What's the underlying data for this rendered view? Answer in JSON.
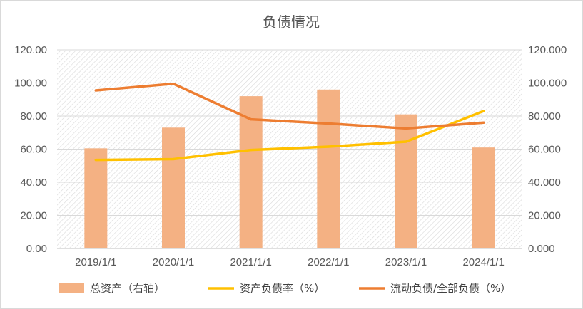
{
  "chart_data": {
    "type": "bar+line",
    "title": "负债情况",
    "categories": [
      "2019/1/1",
      "2020/1/1",
      "2021/1/1",
      "2022/1/1",
      "2023/1/1",
      "2024/1/1"
    ],
    "left_axis": {
      "min": 0,
      "max": 120,
      "step": 20,
      "decimals": 2
    },
    "right_axis": {
      "min": 0,
      "max": 120,
      "step": 20,
      "decimals": 3
    },
    "grid": true,
    "legend_position": "bottom",
    "series": [
      {
        "name": "总资产（右轴）",
        "type": "bar",
        "axis": "right",
        "color": "#F4B183",
        "values": [
          60.5,
          73.0,
          92.0,
          96.0,
          81.0,
          61.0
        ]
      },
      {
        "name": "资产负债率（%）",
        "type": "line",
        "axis": "left",
        "color": "#FFC000",
        "values": [
          53.5,
          54.0,
          59.5,
          61.5,
          64.5,
          83.0
        ]
      },
      {
        "name": "流动负债/全部负债（%）",
        "type": "line",
        "axis": "left",
        "color": "#ED7D31",
        "values": [
          95.5,
          99.5,
          78.0,
          75.5,
          72.5,
          76.0
        ]
      }
    ]
  }
}
